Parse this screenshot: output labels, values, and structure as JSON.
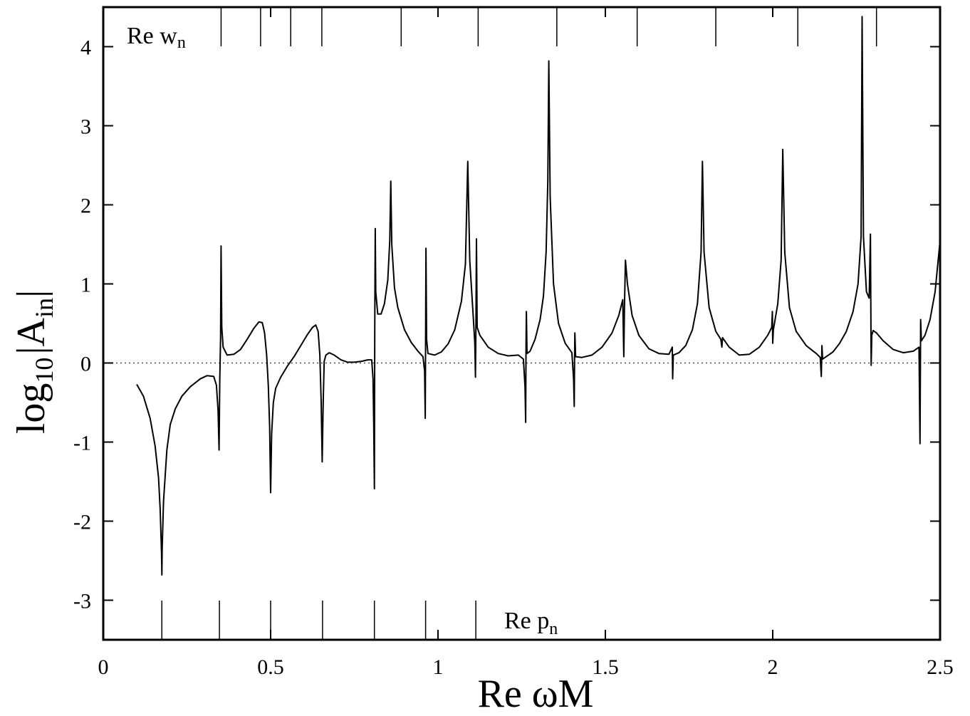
{
  "chart_data": {
    "type": "line",
    "xlabel": "Re ωM",
    "ylabel": {
      "prefix": "log",
      "log_sub": "10",
      "bar_left": "|",
      "A": "A",
      "A_sub": "in",
      "bar_right": "|"
    },
    "xlim": [
      0,
      2.5
    ],
    "ylim": [
      -3.5,
      4.5
    ],
    "xticks": [
      {
        "value": 0,
        "label": "0"
      },
      {
        "value": 0.5,
        "label": "0.5"
      },
      {
        "value": 1,
        "label": "1"
      },
      {
        "value": 1.5,
        "label": "1.5"
      },
      {
        "value": 2,
        "label": "2"
      },
      {
        "value": 2.5,
        "label": "2.5"
      }
    ],
    "yticks": [
      {
        "value": -3,
        "label": "-3"
      },
      {
        "value": -2,
        "label": "-2"
      },
      {
        "value": -1,
        "label": "-1"
      },
      {
        "value": 0,
        "label": "0"
      },
      {
        "value": 1,
        "label": "1"
      },
      {
        "value": 2,
        "label": "2"
      },
      {
        "value": 3,
        "label": "3"
      },
      {
        "value": 4,
        "label": "4"
      }
    ],
    "reference_line": {
      "y": 0,
      "style": "dotted"
    },
    "top_markers": {
      "label_main": "Re w",
      "label_sub": "n",
      "x": [
        0.352,
        0.47,
        0.56,
        0.653,
        0.89,
        1.12,
        1.355,
        1.595,
        1.83,
        2.075,
        2.31
      ]
    },
    "bottom_markers": {
      "label_main": "Re p",
      "label_sub": "n",
      "x": [
        0.175,
        0.347,
        0.5,
        0.655,
        0.81,
        0.963,
        1.113
      ]
    },
    "series": [
      {
        "color": "#000000",
        "points": [
          [
            0.1,
            -0.27
          ],
          [
            0.12,
            -0.42
          ],
          [
            0.14,
            -0.7
          ],
          [
            0.155,
            -1.05
          ],
          [
            0.165,
            -1.45
          ],
          [
            0.17,
            -1.85
          ],
          [
            0.174,
            -2.4
          ],
          [
            0.175,
            -2.68
          ],
          [
            0.176,
            -2.35
          ],
          [
            0.18,
            -1.75
          ],
          [
            0.19,
            -1.1
          ],
          [
            0.2,
            -0.78
          ],
          [
            0.215,
            -0.58
          ],
          [
            0.235,
            -0.42
          ],
          [
            0.26,
            -0.3
          ],
          [
            0.29,
            -0.2
          ],
          [
            0.31,
            -0.16
          ],
          [
            0.33,
            -0.17
          ],
          [
            0.338,
            -0.28
          ],
          [
            0.343,
            -0.6
          ],
          [
            0.346,
            -1.1
          ],
          [
            0.348,
            -0.2
          ],
          [
            0.3505,
            0.3
          ],
          [
            0.352,
            1.48
          ],
          [
            0.354,
            0.45
          ],
          [
            0.358,
            0.2
          ],
          [
            0.37,
            0.1
          ],
          [
            0.39,
            0.11
          ],
          [
            0.41,
            0.17
          ],
          [
            0.43,
            0.3
          ],
          [
            0.45,
            0.44
          ],
          [
            0.465,
            0.52
          ],
          [
            0.475,
            0.51
          ],
          [
            0.482,
            0.38
          ],
          [
            0.488,
            0.1
          ],
          [
            0.493,
            -0.28
          ],
          [
            0.497,
            -0.8
          ],
          [
            0.5,
            -1.64
          ],
          [
            0.503,
            -0.9
          ],
          [
            0.508,
            -0.5
          ],
          [
            0.515,
            -0.32
          ],
          [
            0.53,
            -0.18
          ],
          [
            0.55,
            -0.04
          ],
          [
            0.57,
            0.08
          ],
          [
            0.59,
            0.22
          ],
          [
            0.61,
            0.36
          ],
          [
            0.625,
            0.45
          ],
          [
            0.635,
            0.48
          ],
          [
            0.642,
            0.4
          ],
          [
            0.647,
            0.1
          ],
          [
            0.651,
            -0.5
          ],
          [
            0.654,
            -1.25
          ],
          [
            0.657,
            -0.5
          ],
          [
            0.66,
            0.02
          ],
          [
            0.665,
            0.1
          ],
          [
            0.675,
            0.13
          ],
          [
            0.69,
            0.1
          ],
          [
            0.71,
            0.04
          ],
          [
            0.73,
            0.01
          ],
          [
            0.75,
            0.01
          ],
          [
            0.77,
            0.02
          ],
          [
            0.79,
            0.04
          ],
          [
            0.802,
            0.04
          ],
          [
            0.806,
            -0.2
          ],
          [
            0.808,
            -0.8
          ],
          [
            0.81,
            -1.59
          ],
          [
            0.811,
            0.4
          ],
          [
            0.8125,
            1.7
          ],
          [
            0.814,
            0.9
          ],
          [
            0.82,
            0.62
          ],
          [
            0.83,
            0.62
          ],
          [
            0.84,
            0.75
          ],
          [
            0.85,
            1.05
          ],
          [
            0.856,
            1.55
          ],
          [
            0.859,
            2.3
          ],
          [
            0.862,
            1.5
          ],
          [
            0.87,
            0.95
          ],
          [
            0.88,
            0.7
          ],
          [
            0.9,
            0.42
          ],
          [
            0.92,
            0.26
          ],
          [
            0.94,
            0.15
          ],
          [
            0.955,
            0.08
          ],
          [
            0.96,
            -0.1
          ],
          [
            0.962,
            -0.7
          ],
          [
            0.963,
            0.3
          ],
          [
            0.964,
            1.45
          ],
          [
            0.966,
            0.3
          ],
          [
            0.97,
            0.12
          ],
          [
            0.99,
            0.1
          ],
          [
            1.01,
            0.14
          ],
          [
            1.03,
            0.24
          ],
          [
            1.05,
            0.42
          ],
          [
            1.07,
            0.78
          ],
          [
            1.082,
            1.25
          ],
          [
            1.089,
            2.55
          ],
          [
            1.095,
            1.3
          ],
          [
            1.105,
            0.6
          ],
          [
            1.11,
            0.25
          ],
          [
            1.112,
            -0.18
          ],
          [
            1.1135,
            0.5
          ],
          [
            1.115,
            1.57
          ],
          [
            1.117,
            0.45
          ],
          [
            1.125,
            0.35
          ],
          [
            1.15,
            0.2
          ],
          [
            1.18,
            0.12
          ],
          [
            1.21,
            0.09
          ],
          [
            1.24,
            0.1
          ],
          [
            1.255,
            0.05
          ],
          [
            1.26,
            -0.3
          ],
          [
            1.262,
            -0.75
          ],
          [
            1.263,
            0.2
          ],
          [
            1.264,
            0.65
          ],
          [
            1.266,
            0.12
          ],
          [
            1.275,
            0.15
          ],
          [
            1.29,
            0.3
          ],
          [
            1.305,
            0.55
          ],
          [
            1.315,
            0.85
          ],
          [
            1.323,
            1.4
          ],
          [
            1.328,
            2.3
          ],
          [
            1.331,
            3.82
          ],
          [
            1.335,
            2.1
          ],
          [
            1.345,
            1.0
          ],
          [
            1.36,
            0.5
          ],
          [
            1.38,
            0.25
          ],
          [
            1.4,
            0.13
          ],
          [
            1.405,
            -0.2
          ],
          [
            1.407,
            -0.55
          ],
          [
            1.408,
            0.1
          ],
          [
            1.409,
            0.38
          ],
          [
            1.411,
            0.08
          ],
          [
            1.43,
            0.07
          ],
          [
            1.46,
            0.1
          ],
          [
            1.49,
            0.2
          ],
          [
            1.52,
            0.38
          ],
          [
            1.54,
            0.6
          ],
          [
            1.552,
            0.8
          ],
          [
            1.555,
            0.08
          ],
          [
            1.557,
            0.7
          ],
          [
            1.56,
            1.3
          ],
          [
            1.566,
            1.0
          ],
          [
            1.58,
            0.6
          ],
          [
            1.6,
            0.35
          ],
          [
            1.63,
            0.18
          ],
          [
            1.66,
            0.12
          ],
          [
            1.69,
            0.11
          ],
          [
            1.7,
            0.2
          ],
          [
            1.701,
            -0.2
          ],
          [
            1.703,
            0.1
          ],
          [
            1.72,
            0.13
          ],
          [
            1.74,
            0.22
          ],
          [
            1.76,
            0.42
          ],
          [
            1.775,
            0.75
          ],
          [
            1.786,
            1.4
          ],
          [
            1.79,
            2.55
          ],
          [
            1.795,
            1.4
          ],
          [
            1.81,
            0.7
          ],
          [
            1.83,
            0.4
          ],
          [
            1.845,
            0.3
          ],
          [
            1.848,
            0.2
          ],
          [
            1.85,
            0.32
          ],
          [
            1.87,
            0.2
          ],
          [
            1.9,
            0.1
          ],
          [
            1.93,
            0.11
          ],
          [
            1.96,
            0.2
          ],
          [
            1.985,
            0.35
          ],
          [
            1.997,
            0.45
          ],
          [
            1.999,
            0.65
          ],
          [
            2.0,
            0.25
          ],
          [
            2.002,
            0.42
          ],
          [
            2.015,
            0.75
          ],
          [
            2.025,
            1.3
          ],
          [
            2.03,
            2.7
          ],
          [
            2.036,
            1.4
          ],
          [
            2.05,
            0.7
          ],
          [
            2.07,
            0.4
          ],
          [
            2.1,
            0.22
          ],
          [
            2.13,
            0.12
          ],
          [
            2.142,
            0.07
          ],
          [
            2.145,
            -0.17
          ],
          [
            2.147,
            0.22
          ],
          [
            2.149,
            0.05
          ],
          [
            2.16,
            0.08
          ],
          [
            2.18,
            0.14
          ],
          [
            2.2,
            0.25
          ],
          [
            2.22,
            0.4
          ],
          [
            2.24,
            0.65
          ],
          [
            2.255,
            1.0
          ],
          [
            2.264,
            1.6
          ],
          [
            2.267,
            4.38
          ],
          [
            2.271,
            1.6
          ],
          [
            2.28,
            0.9
          ],
          [
            2.288,
            0.82
          ],
          [
            2.292,
            1.63
          ],
          [
            2.294,
            -0.03
          ],
          [
            2.296,
            0.35
          ],
          [
            2.3,
            0.41
          ],
          [
            2.31,
            0.38
          ],
          [
            2.33,
            0.28
          ],
          [
            2.36,
            0.17
          ],
          [
            2.39,
            0.13
          ],
          [
            2.42,
            0.15
          ],
          [
            2.437,
            0.2
          ],
          [
            2.44,
            -1.02
          ],
          [
            2.442,
            0.55
          ],
          [
            2.444,
            0.28
          ],
          [
            2.455,
            0.35
          ],
          [
            2.47,
            0.55
          ],
          [
            2.485,
            0.9
          ],
          [
            2.5,
            1.55
          ]
        ]
      }
    ]
  }
}
